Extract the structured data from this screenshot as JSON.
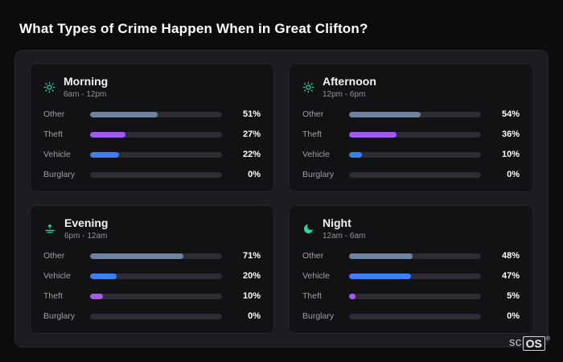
{
  "page": {
    "title": "What Types of Crime Happen When in Great Clifton?"
  },
  "colors": {
    "background": "#0c0c0e",
    "panel": "#1c1c20",
    "card": "#121215",
    "track": "#2c2c32",
    "icon": "#2fd3a6",
    "other": "#6f829e",
    "theft": "#a259ec",
    "vehicle": "#3d7ef5",
    "burglary": "#8a8f98",
    "text_primary": "#ffffff",
    "text_secondary": "#9aa0a8"
  },
  "chart_data": [
    {
      "type": "bar",
      "title": "Morning",
      "subtitle": "6am - 12pm",
      "icon": "sun-icon",
      "unit": "%",
      "xlim": [
        0,
        100
      ],
      "categories": [
        "Other",
        "Theft",
        "Vehicle",
        "Burglary"
      ],
      "values": [
        51,
        27,
        22,
        0
      ],
      "rows": [
        {
          "label": "Other",
          "value": 51,
          "pct": "51%",
          "series": "other"
        },
        {
          "label": "Theft",
          "value": 27,
          "pct": "27%",
          "series": "theft"
        },
        {
          "label": "Vehicle",
          "value": 22,
          "pct": "22%",
          "series": "vehicle"
        },
        {
          "label": "Burglary",
          "value": 0,
          "pct": "0%",
          "series": "burglary"
        }
      ]
    },
    {
      "type": "bar",
      "title": "Afternoon",
      "subtitle": "12pm - 6pm",
      "icon": "sun-icon",
      "unit": "%",
      "xlim": [
        0,
        100
      ],
      "categories": [
        "Other",
        "Theft",
        "Vehicle",
        "Burglary"
      ],
      "values": [
        54,
        36,
        10,
        0
      ],
      "rows": [
        {
          "label": "Other",
          "value": 54,
          "pct": "54%",
          "series": "other"
        },
        {
          "label": "Theft",
          "value": 36,
          "pct": "36%",
          "series": "theft"
        },
        {
          "label": "Vehicle",
          "value": 10,
          "pct": "10%",
          "series": "vehicle"
        },
        {
          "label": "Burglary",
          "value": 0,
          "pct": "0%",
          "series": "burglary"
        }
      ]
    },
    {
      "type": "bar",
      "title": "Evening",
      "subtitle": "6pm - 12am",
      "icon": "sunset-icon",
      "unit": "%",
      "xlim": [
        0,
        100
      ],
      "categories": [
        "Other",
        "Vehicle",
        "Theft",
        "Burglary"
      ],
      "values": [
        71,
        20,
        10,
        0
      ],
      "rows": [
        {
          "label": "Other",
          "value": 71,
          "pct": "71%",
          "series": "other"
        },
        {
          "label": "Vehicle",
          "value": 20,
          "pct": "20%",
          "series": "vehicle"
        },
        {
          "label": "Theft",
          "value": 10,
          "pct": "10%",
          "series": "theft"
        },
        {
          "label": "Burglary",
          "value": 0,
          "pct": "0%",
          "series": "burglary"
        }
      ]
    },
    {
      "type": "bar",
      "title": "Night",
      "subtitle": "12am - 6am",
      "icon": "moon-icon",
      "unit": "%",
      "xlim": [
        0,
        100
      ],
      "categories": [
        "Other",
        "Vehicle",
        "Theft",
        "Burglary"
      ],
      "values": [
        48,
        47,
        5,
        0
      ],
      "rows": [
        {
          "label": "Other",
          "value": 48,
          "pct": "48%",
          "series": "other"
        },
        {
          "label": "Vehicle",
          "value": 47,
          "pct": "47%",
          "series": "vehicle"
        },
        {
          "label": "Theft",
          "value": 5,
          "pct": "5%",
          "series": "theft"
        },
        {
          "label": "Burglary",
          "value": 0,
          "pct": "0%",
          "series": "burglary"
        }
      ]
    }
  ],
  "logo": {
    "prefix": "sc",
    "box": "OS",
    "reg": "®"
  }
}
